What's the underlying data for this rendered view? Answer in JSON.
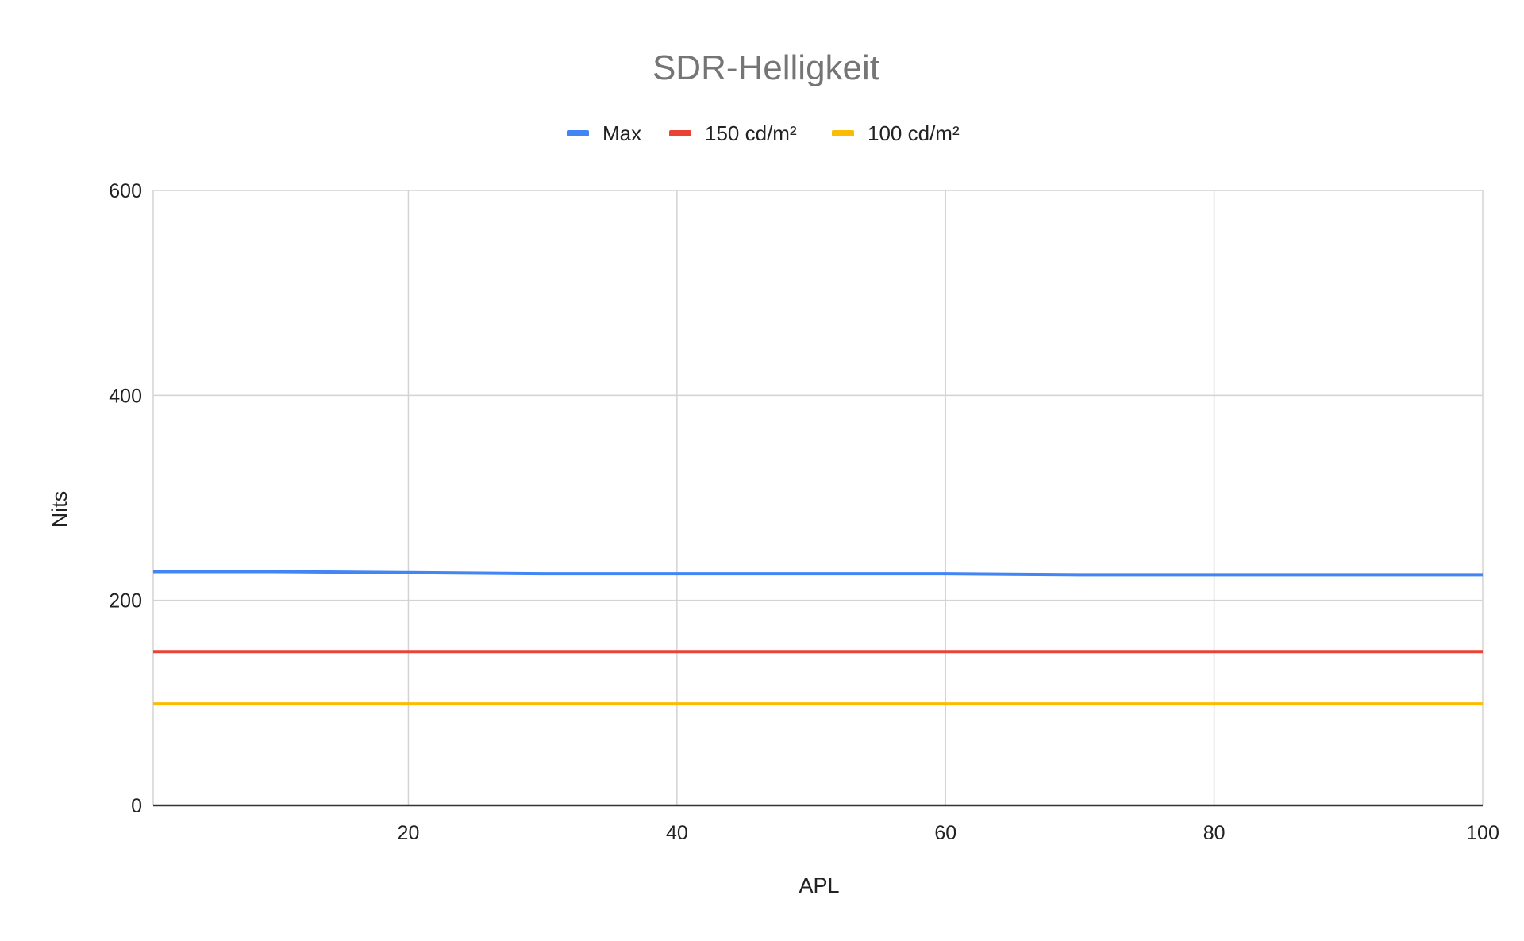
{
  "chart_data": {
    "type": "line",
    "title": "SDR-Helligkeit",
    "xlabel": "APL",
    "ylabel": "Nits",
    "xlim": [
      1,
      100
    ],
    "ylim": [
      0,
      600
    ],
    "x_ticks": [
      20,
      40,
      60,
      80,
      100
    ],
    "y_ticks": [
      0,
      200,
      400,
      600
    ],
    "grid": true,
    "legend_position": "top",
    "x": [
      1,
      10,
      20,
      30,
      40,
      50,
      60,
      70,
      80,
      90,
      100
    ],
    "series": [
      {
        "name": "Max",
        "color": "#4285F4",
        "values": [
          228,
          228,
          227,
          226,
          226,
          226,
          226,
          225,
          225,
          225,
          225
        ]
      },
      {
        "name": "150 cd/m²",
        "color": "#EA4335",
        "values": [
          150,
          150,
          150,
          150,
          150,
          150,
          150,
          150,
          150,
          150,
          150
        ]
      },
      {
        "name": "100 cd/m²",
        "color": "#FBBC04",
        "values": [
          99,
          99,
          99,
          99,
          99,
          99,
          99,
          99,
          99,
          99,
          99
        ]
      }
    ]
  }
}
